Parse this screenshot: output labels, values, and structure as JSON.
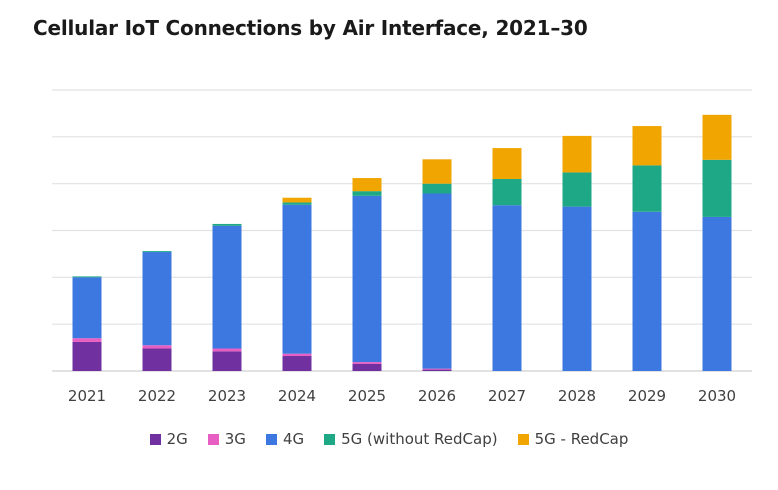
{
  "chart_data": {
    "type": "bar",
    "stacked": true,
    "title": "Cellular IoT Connections by Air Interface, 2021–30",
    "xlabel": "",
    "ylabel": "",
    "ylim": [
      0,
      6
    ],
    "grid": true,
    "legend_position": "bottom",
    "categories": [
      "2021",
      "2022",
      "2023",
      "2024",
      "2025",
      "2026",
      "2027",
      "2028",
      "2029",
      "2030"
    ],
    "series": [
      {
        "name": "2G",
        "color": "#7030a0",
        "values": [
          0.62,
          0.48,
          0.42,
          0.32,
          0.15,
          0.03,
          0.0,
          0.0,
          0.0,
          0.0
        ]
      },
      {
        "name": "3G",
        "color": "#e85fc3",
        "values": [
          0.08,
          0.07,
          0.06,
          0.05,
          0.04,
          0.02,
          0.0,
          0.0,
          0.0,
          0.0
        ]
      },
      {
        "name": "4G",
        "color": "#3c78e0",
        "values": [
          1.3,
          1.99,
          2.62,
          3.18,
          3.55,
          3.74,
          3.54,
          3.51,
          3.4,
          3.29
        ]
      },
      {
        "name": "5G (without RedCap)",
        "color": "#1fa886",
        "values": [
          0.02,
          0.02,
          0.04,
          0.05,
          0.1,
          0.21,
          0.56,
          0.73,
          0.99,
          1.22
        ]
      },
      {
        "name": "5G - RedCap",
        "color": "#f0a500",
        "values": [
          0.0,
          0.0,
          0.0,
          0.1,
          0.28,
          0.52,
          0.66,
          0.78,
          0.84,
          0.96
        ]
      }
    ]
  }
}
